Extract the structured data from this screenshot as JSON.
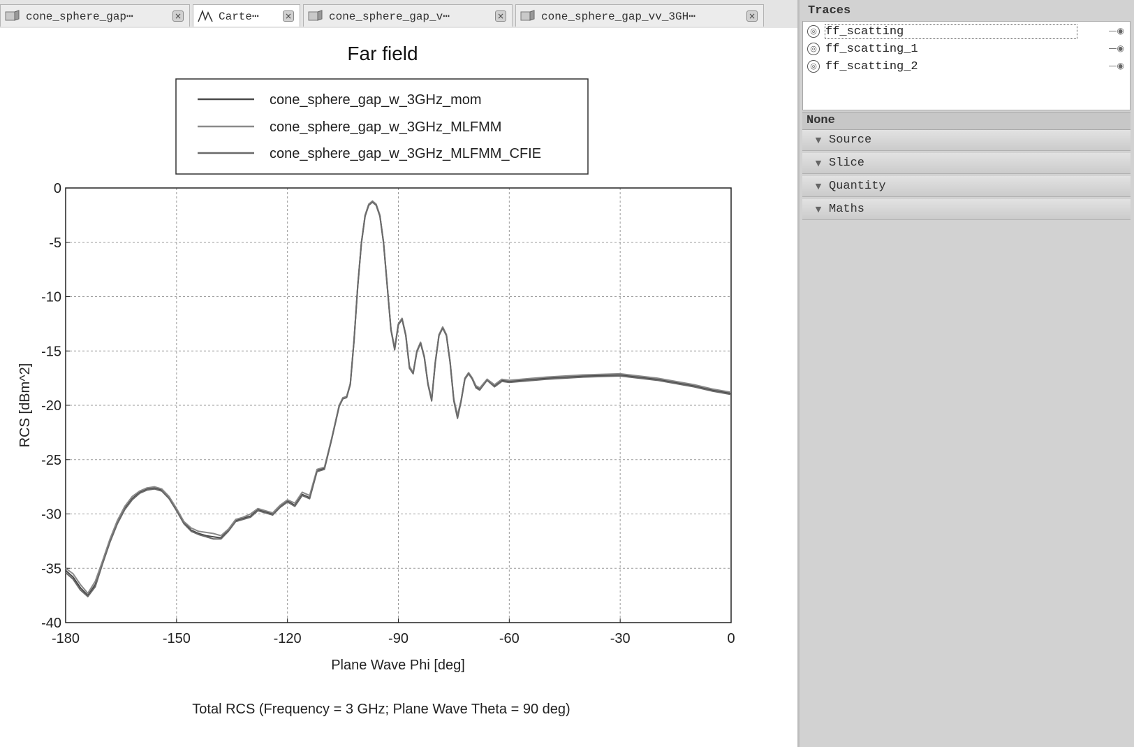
{
  "tabs": [
    {
      "label": "cone_sphere_gap⋯",
      "icon": "3d-model-icon",
      "active": false
    },
    {
      "label": "Carte⋯",
      "icon": "cartesian-graph-icon",
      "active": true
    },
    {
      "label": "cone_sphere_gap_v⋯",
      "icon": "3d-model-icon",
      "active": false
    },
    {
      "label": "cone_sphere_gap_vv_3GH⋯",
      "icon": "3d-model-icon",
      "active": false
    }
  ],
  "close_glyph": "×",
  "traces_panel": {
    "title": "Traces",
    "items": [
      {
        "label": "ff_scatting",
        "selected": true
      },
      {
        "label": "ff_scatting_1",
        "selected": false
      },
      {
        "label": "ff_scatting_2",
        "selected": false
      }
    ],
    "tail": "—◉",
    "none_label": "None",
    "sections": [
      "Source",
      "Slice",
      "Quantity",
      "Maths"
    ]
  },
  "chart_data": {
    "type": "line",
    "title": "Far field",
    "xlabel": "Plane Wave Phi [deg]",
    "ylabel": "RCS [dBm^2]",
    "footer": "Total RCS (Frequency = 3 GHz; Plane Wave Theta = 90 deg)",
    "xlim": [
      -180,
      0
    ],
    "ylim": [
      -40,
      0
    ],
    "xticks": [
      "-180",
      "-150",
      "-120",
      "-90",
      "-60",
      "-30",
      "0"
    ],
    "yticks": [
      "0",
      "-5",
      "-10",
      "-15",
      "-20",
      "-25",
      "-30",
      "-35",
      "-40"
    ],
    "grid": true,
    "legend_position": "top",
    "series": [
      {
        "name": "cone_sphere_gap_w_3GHz_mom",
        "color": "#4a4a4a",
        "x": [
          -180,
          -178,
          -176,
          -174,
          -172,
          -170,
          -168,
          -166,
          -164,
          -162,
          -160,
          -158,
          -156,
          -154,
          -152,
          -150,
          -148,
          -146,
          -144,
          -142,
          -140,
          -138,
          -136,
          -134,
          -132,
          -130,
          -128,
          -126,
          -124,
          -122,
          -120,
          -118,
          -116,
          -114,
          -112,
          -110,
          -108,
          -106,
          -105,
          -104,
          -103,
          -102,
          -101,
          -100,
          -99,
          -98,
          -97,
          -96,
          -95,
          -94,
          -93,
          -92,
          -91,
          -90,
          -89,
          -88,
          -87,
          -86,
          -85,
          -84,
          -83,
          -82,
          -81,
          -80,
          -79,
          -78,
          -77,
          -76,
          -75,
          -74,
          -73,
          -72,
          -71,
          -70,
          -69,
          -68,
          -66,
          -64,
          -62,
          -60,
          -50,
          -40,
          -30,
          -20,
          -10,
          -5,
          0
        ],
        "y": [
          -35.2,
          -35.8,
          -36.8,
          -37.5,
          -36.5,
          -34.5,
          -32.5,
          -30.8,
          -29.5,
          -28.6,
          -28.0,
          -27.7,
          -27.6,
          -27.8,
          -28.5,
          -29.6,
          -30.8,
          -31.5,
          -31.8,
          -32.0,
          -32.1,
          -32.2,
          -31.5,
          -30.6,
          -30.4,
          -30.2,
          -29.6,
          -29.8,
          -30.0,
          -29.3,
          -28.8,
          -29.2,
          -28.2,
          -28.5,
          -26.0,
          -25.8,
          -23.0,
          -20.0,
          -19.3,
          -19.2,
          -18.0,
          -14.0,
          -9.0,
          -5.0,
          -2.5,
          -1.5,
          -1.2,
          -1.5,
          -2.5,
          -5.0,
          -9.0,
          -13.0,
          -14.8,
          -12.5,
          -12.0,
          -13.5,
          -16.5,
          -17.0,
          -15.0,
          -14.2,
          -15.5,
          -18.0,
          -19.5,
          -16.0,
          -13.5,
          -12.8,
          -13.5,
          -16.0,
          -19.5,
          -21.0,
          -19.5,
          -17.5,
          -17.0,
          -17.5,
          -18.3,
          -18.5,
          -17.6,
          -18.2,
          -17.7,
          -17.8,
          -17.5,
          -17.3,
          -17.2,
          -17.6,
          -18.2,
          -18.6,
          -18.9
        ]
      },
      {
        "name": "cone_sphere_gap_w_3GHz_MLFMM",
        "color": "#8a8a8a",
        "x": [
          -180,
          -178,
          -176,
          -174,
          -172,
          -170,
          -168,
          -166,
          -164,
          -162,
          -160,
          -158,
          -156,
          -154,
          -152,
          -150,
          -148,
          -146,
          -144,
          -142,
          -140,
          -138,
          -136,
          -134,
          -132,
          -130,
          -128,
          -126,
          -124,
          -122,
          -120,
          -118,
          -116,
          -114,
          -112,
          -110,
          -108,
          -106,
          -105,
          -104,
          -103,
          -102,
          -101,
          -100,
          -99,
          -98,
          -97,
          -96,
          -95,
          -94,
          -93,
          -92,
          -91,
          -90,
          -89,
          -88,
          -87,
          -86,
          -85,
          -84,
          -83,
          -82,
          -81,
          -80,
          -79,
          -78,
          -77,
          -76,
          -75,
          -74,
          -73,
          -72,
          -71,
          -70,
          -69,
          -68,
          -66,
          -64,
          -62,
          -60,
          -50,
          -40,
          -30,
          -20,
          -10,
          -5,
          0
        ],
        "y": [
          -35.0,
          -35.5,
          -36.5,
          -37.3,
          -36.2,
          -34.3,
          -32.3,
          -30.6,
          -29.3,
          -28.4,
          -27.9,
          -27.6,
          -27.5,
          -27.7,
          -28.4,
          -29.5,
          -30.7,
          -31.3,
          -31.6,
          -31.7,
          -31.8,
          -32.0,
          -31.4,
          -30.5,
          -30.3,
          -30.0,
          -29.5,
          -29.7,
          -29.9,
          -29.2,
          -28.7,
          -29.0,
          -28.0,
          -28.3,
          -25.9,
          -25.7,
          -23.0,
          -20.0,
          -19.3,
          -19.2,
          -18.0,
          -14.0,
          -9.0,
          -5.0,
          -2.5,
          -1.5,
          -1.2,
          -1.5,
          -2.5,
          -5.0,
          -9.0,
          -13.0,
          -14.7,
          -12.5,
          -12.0,
          -13.5,
          -16.4,
          -17.0,
          -15.0,
          -14.2,
          -15.5,
          -18.0,
          -19.4,
          -16.0,
          -13.5,
          -12.8,
          -13.5,
          -16.0,
          -19.4,
          -20.9,
          -19.5,
          -17.5,
          -17.0,
          -17.5,
          -18.2,
          -18.4,
          -17.6,
          -18.1,
          -17.6,
          -17.7,
          -17.4,
          -17.2,
          -17.1,
          -17.5,
          -18.1,
          -18.5,
          -18.8
        ]
      },
      {
        "name": "cone_sphere_gap_w_3GHz_MLFMM_CFIE",
        "color": "#6a6a6a",
        "x": [
          -180,
          -178,
          -176,
          -174,
          -172,
          -170,
          -168,
          -166,
          -164,
          -162,
          -160,
          -158,
          -156,
          -154,
          -152,
          -150,
          -148,
          -146,
          -144,
          -142,
          -140,
          -138,
          -136,
          -134,
          -132,
          -130,
          -128,
          -126,
          -124,
          -122,
          -120,
          -118,
          -116,
          -114,
          -112,
          -110,
          -108,
          -106,
          -105,
          -104,
          -103,
          -102,
          -101,
          -100,
          -99,
          -98,
          -97,
          -96,
          -95,
          -94,
          -93,
          -92,
          -91,
          -90,
          -89,
          -88,
          -87,
          -86,
          -85,
          -84,
          -83,
          -82,
          -81,
          -80,
          -79,
          -78,
          -77,
          -76,
          -75,
          -74,
          -73,
          -72,
          -71,
          -70,
          -69,
          -68,
          -66,
          -64,
          -62,
          -60,
          -50,
          -40,
          -30,
          -20,
          -10,
          -5,
          0
        ],
        "y": [
          -35.4,
          -36.0,
          -37.0,
          -37.6,
          -36.7,
          -34.6,
          -32.6,
          -30.9,
          -29.6,
          -28.7,
          -28.1,
          -27.8,
          -27.7,
          -27.9,
          -28.6,
          -29.7,
          -30.9,
          -31.6,
          -31.9,
          -32.1,
          -32.3,
          -32.3,
          -31.6,
          -30.7,
          -30.5,
          -30.3,
          -29.7,
          -29.9,
          -30.1,
          -29.4,
          -28.9,
          -29.3,
          -28.3,
          -28.6,
          -26.1,
          -25.9,
          -23.1,
          -20.1,
          -19.4,
          -19.3,
          -18.1,
          -14.1,
          -9.1,
          -5.1,
          -2.6,
          -1.6,
          -1.3,
          -1.6,
          -2.6,
          -5.1,
          -9.1,
          -13.1,
          -14.9,
          -12.6,
          -12.1,
          -13.6,
          -16.6,
          -17.1,
          -15.1,
          -14.3,
          -15.6,
          -18.1,
          -19.6,
          -16.1,
          -13.6,
          -12.9,
          -13.6,
          -16.1,
          -19.6,
          -21.2,
          -19.6,
          -17.6,
          -17.1,
          -17.6,
          -18.4,
          -18.6,
          -17.7,
          -18.3,
          -17.8,
          -17.9,
          -17.6,
          -17.4,
          -17.3,
          -17.7,
          -18.3,
          -18.7,
          -19.0
        ]
      }
    ]
  }
}
